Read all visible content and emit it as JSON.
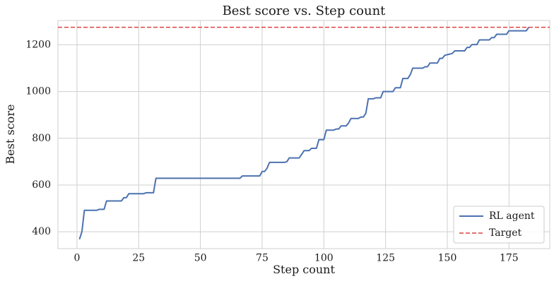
{
  "chart_data": {
    "type": "line",
    "title": "Best score vs. Step count",
    "xlabel": "Step count",
    "ylabel": "Best score",
    "xlim": [
      -7.7,
      191.5
    ],
    "ylim": [
      328,
      1304
    ],
    "xticks": [
      0,
      25,
      50,
      75,
      100,
      125,
      150,
      175
    ],
    "yticks": [
      400,
      600,
      800,
      1000,
      1200
    ],
    "grid": true,
    "legend_position": "lower-right",
    "series": [
      {
        "name": "RL agent",
        "color": "#4c72b0",
        "line_style": "solid",
        "points": [
          [
            1,
            368
          ],
          [
            2,
            400
          ],
          [
            3,
            492
          ],
          [
            8,
            492
          ],
          [
            9,
            496
          ],
          [
            11,
            496
          ],
          [
            12,
            532
          ],
          [
            18,
            532
          ],
          [
            19,
            546
          ],
          [
            20,
            546
          ],
          [
            21,
            563
          ],
          [
            27,
            563
          ],
          [
            28,
            567
          ],
          [
            31,
            567
          ],
          [
            32,
            629
          ],
          [
            66,
            629
          ],
          [
            67,
            639
          ],
          [
            74,
            639
          ],
          [
            75,
            658
          ],
          [
            76,
            658
          ],
          [
            77,
            672
          ],
          [
            78,
            697
          ],
          [
            84,
            697
          ],
          [
            85,
            700
          ],
          [
            86,
            716
          ],
          [
            90,
            716
          ],
          [
            91,
            731
          ],
          [
            92,
            747
          ],
          [
            94,
            747
          ],
          [
            95,
            757
          ],
          [
            97,
            757
          ],
          [
            98,
            794
          ],
          [
            100,
            794
          ],
          [
            101,
            835
          ],
          [
            104,
            835
          ],
          [
            105,
            840
          ],
          [
            106,
            840
          ],
          [
            107,
            853
          ],
          [
            109,
            853
          ],
          [
            110,
            865
          ],
          [
            111,
            885
          ],
          [
            114,
            885
          ],
          [
            115,
            891
          ],
          [
            116,
            891
          ],
          [
            117,
            907
          ],
          [
            118,
            969
          ],
          [
            120,
            969
          ],
          [
            121,
            973
          ],
          [
            123,
            973
          ],
          [
            124,
            1000
          ],
          [
            128,
            1000
          ],
          [
            129,
            1016
          ],
          [
            131,
            1016
          ],
          [
            132,
            1056
          ],
          [
            134,
            1056
          ],
          [
            135,
            1072
          ],
          [
            136,
            1100
          ],
          [
            140,
            1100
          ],
          [
            141,
            1106
          ],
          [
            142,
            1106
          ],
          [
            143,
            1122
          ],
          [
            146,
            1122
          ],
          [
            147,
            1142
          ],
          [
            148,
            1142
          ],
          [
            149,
            1155
          ],
          [
            152,
            1163
          ],
          [
            153,
            1174
          ],
          [
            157,
            1174
          ],
          [
            158,
            1189
          ],
          [
            159,
            1189
          ],
          [
            160,
            1201
          ],
          [
            162,
            1201
          ],
          [
            163,
            1221
          ],
          [
            167,
            1221
          ],
          [
            168,
            1231
          ],
          [
            169,
            1231
          ],
          [
            170,
            1245
          ],
          [
            174,
            1245
          ],
          [
            175,
            1260
          ],
          [
            182,
            1260
          ],
          [
            183,
            1275
          ]
        ]
      },
      {
        "name": "Target",
        "color": "#dd4444",
        "line_style": "dashed",
        "y": 1275
      }
    ]
  }
}
